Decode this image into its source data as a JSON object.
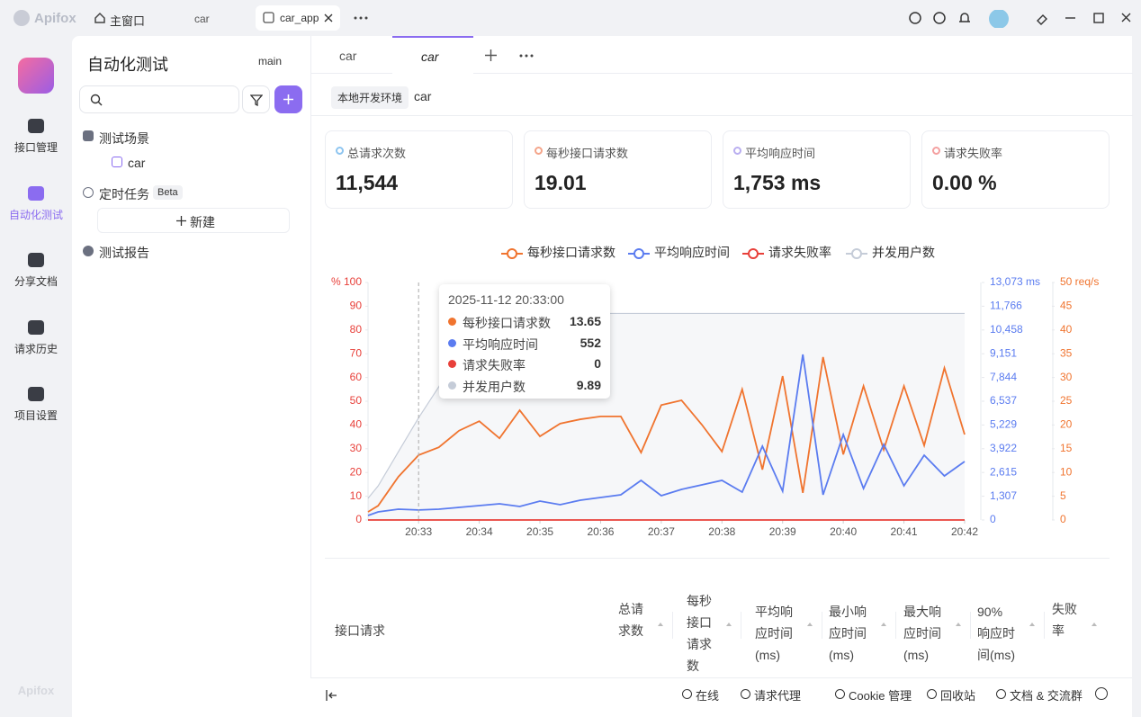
{
  "titlebar": {
    "app": "Apifox",
    "tabs": [
      "主窗口",
      "car",
      "car_app"
    ]
  },
  "sidebar": {
    "items": [
      "接口管理",
      "自动化测试",
      "分享文档",
      "请求历史",
      "项目设置"
    ],
    "footer": "Apifox"
  },
  "panel": {
    "title": "自动化测试",
    "branch": "main",
    "scenes": "测试场景",
    "scene_item": "car",
    "scheduled": "定时任务",
    "beta": "Beta",
    "new": "新建",
    "reports": "测试报告"
  },
  "main": {
    "tabs": [
      "car",
      "car"
    ],
    "env": "本地开发环境",
    "env_name": "car",
    "stats": [
      {
        "label": "总请求次数",
        "value": "11,544"
      },
      {
        "label": "每秒接口请求数",
        "value": "19.01"
      },
      {
        "label": "平均响应时间",
        "value": "1,753 ms"
      },
      {
        "label": "请求失败率",
        "value": "0.00 %"
      }
    ],
    "table": {
      "columns": [
        "接口请求",
        "总请求数",
        "每秒接口请求数",
        "平均响应时间(ms)",
        "最小响应时间(ms)",
        "最大响应时间(ms)",
        "90% 响应时间(ms)",
        "失败率"
      ]
    }
  },
  "statusbar": [
    "在线",
    "请求代理",
    "Cookie 管理",
    "回收站",
    "文档 & 交流群"
  ],
  "chart_data": {
    "type": "line",
    "tooltip_title": "2025-11-12 20:33:00",
    "x": [
      "20:32:10",
      "20:32:20",
      "20:32:40",
      "20:33:00",
      "20:33:20",
      "20:33:40",
      "20:34:00",
      "20:34:20",
      "20:34:40",
      "20:35:00",
      "20:35:20",
      "20:35:40",
      "20:36:00",
      "20:36:20",
      "20:36:40",
      "20:37:00",
      "20:37:20",
      "20:37:40",
      "20:38:00",
      "20:38:20",
      "20:38:40",
      "20:39:00",
      "20:39:20",
      "20:39:40",
      "20:40:00",
      "20:40:20",
      "20:40:40",
      "20:41:00",
      "20:41:20",
      "20:41:40",
      "20:42:00"
    ],
    "xlim": [
      "20:32:10",
      "20:42:00"
    ],
    "xticks": [
      {
        "value": "20:33:00",
        "label": "20:33"
      },
      {
        "value": "20:34:00",
        "label": "20:34"
      },
      {
        "value": "20:35:00",
        "label": "20:35"
      },
      {
        "value": "20:36:00",
        "label": "20:36"
      },
      {
        "value": "20:37:00",
        "label": "20:37"
      },
      {
        "value": "20:38:00",
        "label": "20:38"
      },
      {
        "value": "20:39:00",
        "label": "20:39"
      },
      {
        "value": "20:40:00",
        "label": "20:40"
      },
      {
        "value": "20:41:00",
        "label": "20:41"
      },
      {
        "value": "20:42:00",
        "label": "20:42"
      }
    ],
    "ylim": [
      0,
      100
    ],
    "yticks": [
      0,
      10,
      20,
      30,
      40,
      50,
      60,
      70,
      80,
      90,
      {
        "value": 100,
        "label": "% 100"
      }
    ],
    "y2lim": [
      0,
      13073
    ],
    "y2ticks": [
      0,
      {
        "value": 1307,
        "label": "1,307"
      },
      {
        "value": 2615,
        "label": "2,615"
      },
      {
        "value": 3922,
        "label": "3,922"
      },
      {
        "value": 5229,
        "label": "5,229"
      },
      {
        "value": 6537,
        "label": "6,537"
      },
      {
        "value": 7844,
        "label": "7,844"
      },
      {
        "value": 9151,
        "label": "9,151"
      },
      {
        "value": 10458,
        "label": "10,458"
      },
      {
        "value": 11766,
        "label": "11,766"
      },
      {
        "value": 13073,
        "label": "13,073 ms"
      }
    ],
    "y3lim": [
      0,
      50
    ],
    "y3ticks": [
      0,
      5,
      10,
      15,
      20,
      25,
      30,
      35,
      40,
      45,
      {
        "value": 50,
        "label": "50 req/s"
      }
    ],
    "y4lim": [
      0,
      23
    ],
    "series": [
      {
        "name": "每秒接口请求数",
        "color": "#f0742f",
        "axis": "y3",
        "values": [
          1.7,
          3,
          9.1,
          13.65,
          15.3,
          18.8,
          20.8,
          17.2,
          23.1,
          17.6,
          20.3,
          21.2,
          21.8,
          21.8,
          14.2,
          24.2,
          25.2,
          20.1,
          14.4,
          27.5,
          10.6,
          30.3,
          5.7,
          34.3,
          13.8,
          28.2,
          14.8,
          28.2,
          15.7,
          32,
          18
        ]
      },
      {
        "name": "平均响应时间",
        "color": "#5b7cf0",
        "axis": "y2",
        "values": [
          248,
          446,
          594,
          552,
          594,
          693,
          792,
          891,
          743,
          1040,
          842,
          1089,
          1238,
          1386,
          2179,
          1337,
          1684,
          1931,
          2179,
          1535,
          4060,
          1585,
          9110,
          1386,
          4703,
          1733,
          4159,
          1882,
          3565,
          2426,
          3218
        ]
      },
      {
        "name": "请求失败率",
        "color": "#e8403a",
        "axis": "y",
        "values": [
          0,
          0,
          0,
          0,
          0,
          0,
          0,
          0,
          0,
          0,
          0,
          0,
          0,
          0,
          0,
          0,
          0,
          0,
          0,
          0,
          0,
          0,
          0,
          0,
          0,
          0,
          0,
          0,
          0,
          0,
          0
        ]
      },
      {
        "name": "并发用户数",
        "color": "#c5ccd8",
        "axis": "y4",
        "values": [
          2.1,
          3.3,
          6.6,
          9.89,
          12.9,
          16.2,
          19.5,
          20,
          20,
          20,
          20,
          20,
          20,
          20,
          20,
          20,
          20,
          20,
          20,
          20,
          20,
          20,
          20,
          20,
          20,
          20,
          20,
          20,
          20,
          20,
          20
        ]
      }
    ]
  }
}
